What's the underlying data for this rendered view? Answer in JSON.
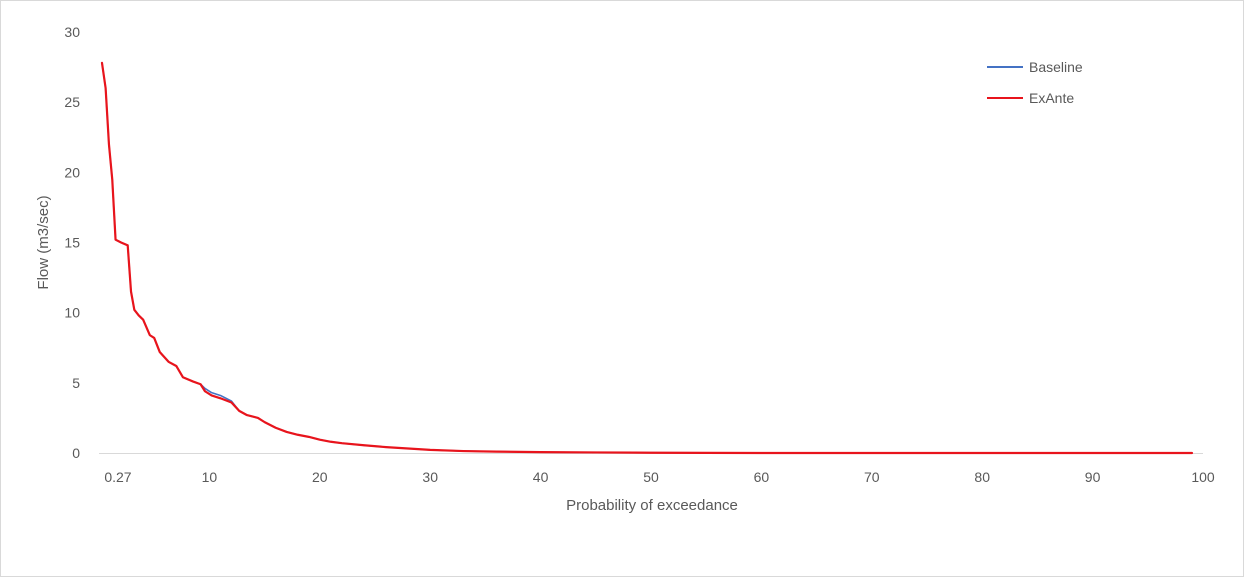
{
  "chart_data": {
    "type": "line",
    "title": "",
    "xlabel": "Probability of exceedance",
    "ylabel": "Flow (m3/sec)",
    "xlim": [
      0,
      100
    ],
    "ylim": [
      0,
      30
    ],
    "x_ticks": [
      "0.27",
      "10",
      "20",
      "30",
      "40",
      "50",
      "60",
      "70",
      "80",
      "90",
      "100"
    ],
    "x_tick_values": [
      0.27,
      10,
      20,
      30,
      40,
      50,
      60,
      70,
      80,
      90,
      100
    ],
    "y_ticks": [
      "0",
      "5",
      "10",
      "15",
      "20",
      "25",
      "30"
    ],
    "y_tick_values": [
      0,
      5,
      10,
      15,
      20,
      25,
      30
    ],
    "grid": false,
    "legend_position": "top-right",
    "series": [
      {
        "name": "Baseline",
        "color": "#4472c4",
        "x": [
          0.27,
          0.6,
          0.9,
          1.2,
          1.5,
          2.0,
          2.6,
          2.9,
          3.2,
          3.6,
          4.0,
          4.6,
          5.0,
          5.5,
          6.3,
          7.0,
          7.6,
          8.5,
          9.2,
          9.6,
          10.2,
          11.0,
          12.0,
          12.7,
          13.4,
          14.4,
          15.0,
          16.0,
          17.0,
          18.0,
          19.0,
          20.0,
          21.0,
          22.0,
          24.0,
          26.0,
          28.0,
          30.0,
          33.0,
          36.0,
          40.0,
          45.0,
          50.0,
          55.0,
          60.0,
          70.0,
          80.0,
          90.0,
          99.0
        ],
        "values": [
          27.8,
          26.0,
          22.0,
          19.5,
          15.2,
          15.0,
          14.8,
          11.5,
          10.2,
          9.8,
          9.5,
          8.4,
          8.2,
          7.2,
          6.5,
          6.2,
          5.4,
          5.1,
          4.9,
          4.6,
          4.3,
          4.1,
          3.7,
          3.0,
          2.7,
          2.5,
          2.2,
          1.8,
          1.5,
          1.3,
          1.15,
          0.95,
          0.8,
          0.7,
          0.55,
          0.42,
          0.32,
          0.22,
          0.14,
          0.1,
          0.06,
          0.04,
          0.02,
          0.01,
          0.0,
          0.0,
          0.0,
          0.0,
          0.0
        ]
      },
      {
        "name": "ExAnte",
        "color": "#e8141c",
        "x": [
          0.27,
          0.6,
          0.9,
          1.2,
          1.5,
          2.0,
          2.6,
          2.9,
          3.2,
          3.6,
          4.0,
          4.6,
          5.0,
          5.5,
          6.3,
          7.0,
          7.6,
          8.5,
          9.2,
          9.6,
          10.2,
          11.0,
          12.0,
          12.7,
          13.4,
          14.4,
          15.0,
          16.0,
          17.0,
          18.0,
          19.0,
          20.0,
          21.0,
          22.0,
          24.0,
          26.0,
          28.0,
          30.0,
          33.0,
          36.0,
          40.0,
          45.0,
          50.0,
          55.0,
          60.0,
          70.0,
          80.0,
          90.0,
          99.0
        ],
        "values": [
          27.8,
          26.0,
          22.0,
          19.5,
          15.2,
          15.0,
          14.8,
          11.5,
          10.2,
          9.8,
          9.5,
          8.4,
          8.2,
          7.2,
          6.5,
          6.2,
          5.4,
          5.1,
          4.9,
          4.4,
          4.1,
          3.9,
          3.6,
          3.0,
          2.7,
          2.5,
          2.2,
          1.8,
          1.5,
          1.3,
          1.15,
          0.95,
          0.8,
          0.7,
          0.55,
          0.42,
          0.32,
          0.22,
          0.14,
          0.1,
          0.06,
          0.04,
          0.02,
          0.01,
          0.0,
          0.0,
          0.0,
          0.0,
          0.0
        ]
      }
    ]
  }
}
